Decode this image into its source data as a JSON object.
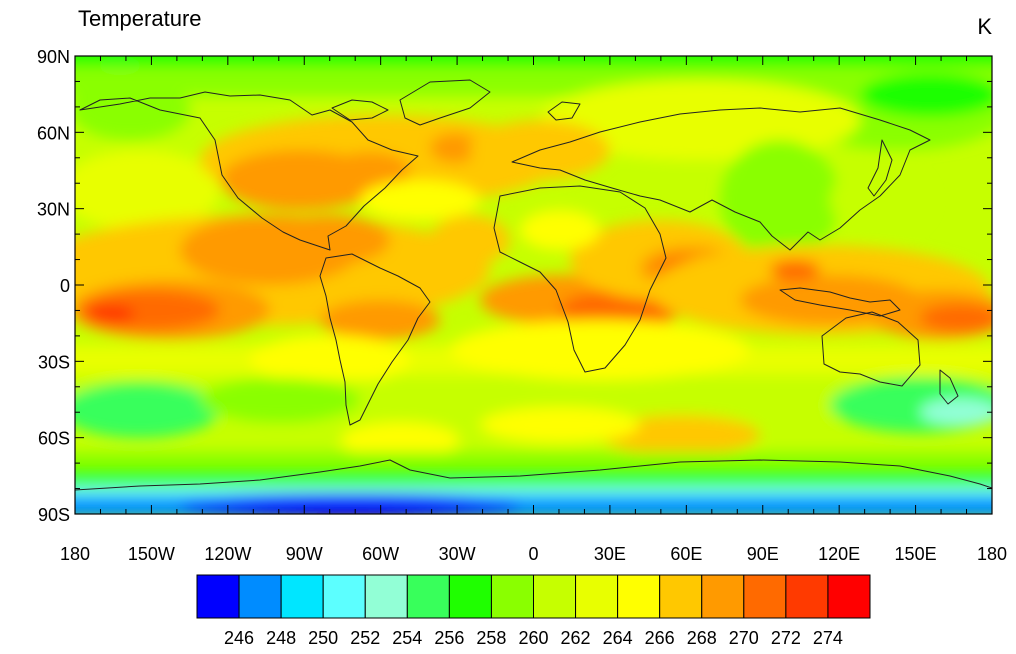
{
  "title_left": "Temperature",
  "title_right": "K",
  "colors": {
    "background": "#ffffff",
    "coastline": "#222222",
    "frame": "#000000"
  },
  "map": {
    "projection": "cylindrical-equidistant",
    "lon_range": [
      -180,
      180
    ],
    "lat_range": [
      -90,
      90
    ],
    "x_ticks": [
      {
        "value": -180,
        "label": "180"
      },
      {
        "value": -150,
        "label": "150W"
      },
      {
        "value": -120,
        "label": "120W"
      },
      {
        "value": -90,
        "label": "90W"
      },
      {
        "value": -60,
        "label": "60W"
      },
      {
        "value": -30,
        "label": "30W"
      },
      {
        "value": 0,
        "label": "0"
      },
      {
        "value": 30,
        "label": "30E"
      },
      {
        "value": 60,
        "label": "60E"
      },
      {
        "value": 90,
        "label": "90E"
      },
      {
        "value": 120,
        "label": "120E"
      },
      {
        "value": 150,
        "label": "150E"
      },
      {
        "value": 180,
        "label": "180"
      }
    ],
    "y_ticks": [
      {
        "value": 90,
        "label": "90N"
      },
      {
        "value": 60,
        "label": "60N"
      },
      {
        "value": 30,
        "label": "30N"
      },
      {
        "value": 0,
        "label": "0"
      },
      {
        "value": -30,
        "label": "30S"
      },
      {
        "value": -60,
        "label": "60S"
      },
      {
        "value": -90,
        "label": "90S"
      }
    ]
  },
  "colorbar": {
    "colors": [
      "#0000ff",
      "#008cff",
      "#00e6ff",
      "#5cffff",
      "#92ffd6",
      "#38ff5b",
      "#1fff00",
      "#8aff00",
      "#c6ff00",
      "#e8ff00",
      "#ffff00",
      "#ffc800",
      "#ff9a00",
      "#ff6a00",
      "#ff3a00",
      "#ff0000"
    ],
    "labels": [
      "246",
      "248",
      "250",
      "252",
      "254",
      "256",
      "258",
      "260",
      "262",
      "264",
      "266",
      "268",
      "270",
      "272",
      "274"
    ]
  }
}
